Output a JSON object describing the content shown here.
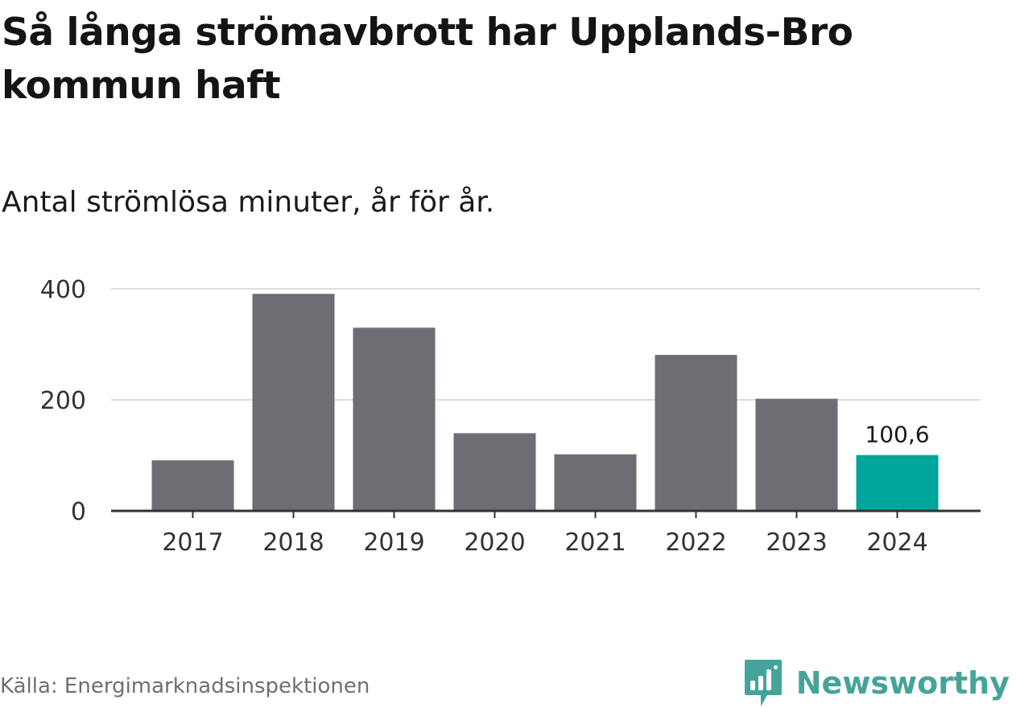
{
  "header": {
    "title": "Så långa strömavbrott har Upplands-Bro kommun haft",
    "subtitle": "Antal strömlösa minuter, år för år."
  },
  "footer": {
    "source": "Källa: Energimarknadsinspektionen",
    "brand": "Newsworthy"
  },
  "colors": {
    "bar": "#6e6d74",
    "highlight": "#00a59b",
    "grid": "#dddddd",
    "axis": "#333333",
    "brand": "#45a49a"
  },
  "chart_data": {
    "type": "bar",
    "title": "Så långa strömavbrott har Upplands-Bro kommun haft",
    "subtitle": "Antal strömlösa minuter, år för år.",
    "categories": [
      "2017",
      "2018",
      "2019",
      "2020",
      "2021",
      "2022",
      "2023",
      "2024"
    ],
    "values": [
      91,
      391,
      330,
      140,
      102,
      281,
      202,
      100.6
    ],
    "highlight_index": 7,
    "data_labels": [
      {
        "index": 7,
        "text": "100,6"
      }
    ],
    "y_ticks": [
      0,
      200,
      400
    ],
    "y_tick_labels": [
      "0",
      "200",
      "400"
    ],
    "ylim": [
      0,
      400
    ],
    "grid": true,
    "xlabel": "",
    "ylabel": ""
  }
}
